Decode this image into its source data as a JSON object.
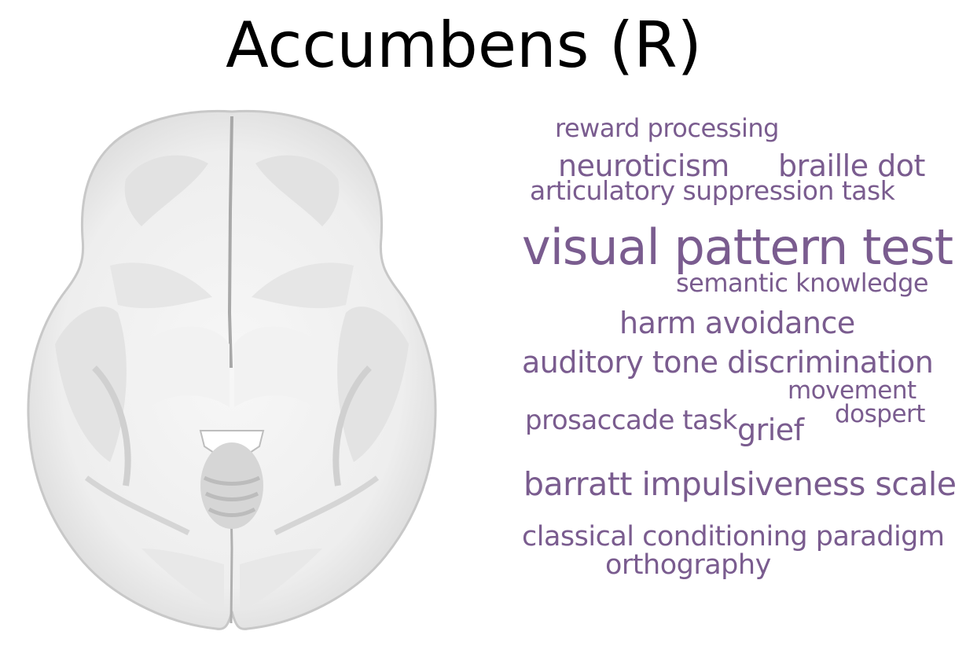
{
  "title": "Accumbens (R)",
  "colors": {
    "word": "#7a5c8f",
    "title": "#000000",
    "brain_light": "#f4f4f4",
    "brain_mid": "#d9d9d9",
    "brain_dark": "#9a9a9a"
  },
  "words": [
    {
      "id": "reward-processing",
      "text": "reward processing"
    },
    {
      "id": "neuroticism",
      "text": "neuroticism"
    },
    {
      "id": "braille-dot",
      "text": "braille dot"
    },
    {
      "id": "articulatory-suppression-task",
      "text": "articulatory suppression task"
    },
    {
      "id": "visual-pattern-test",
      "text": "visual pattern test"
    },
    {
      "id": "semantic-knowledge",
      "text": "semantic knowledge"
    },
    {
      "id": "harm-avoidance",
      "text": "harm avoidance"
    },
    {
      "id": "auditory-tone-discrimination",
      "text": "auditory tone discrimination"
    },
    {
      "id": "movement",
      "text": "movement"
    },
    {
      "id": "dospert",
      "text": "dospert"
    },
    {
      "id": "prosaccade-task",
      "text": "prosaccade task"
    },
    {
      "id": "grief",
      "text": "grief"
    },
    {
      "id": "barratt-impulsiveness-scale",
      "text": "barratt impulsiveness scale"
    },
    {
      "id": "classical-conditioning-paradigm",
      "text": "classical conditioning paradigm"
    },
    {
      "id": "orthography",
      "text": "orthography"
    }
  ]
}
